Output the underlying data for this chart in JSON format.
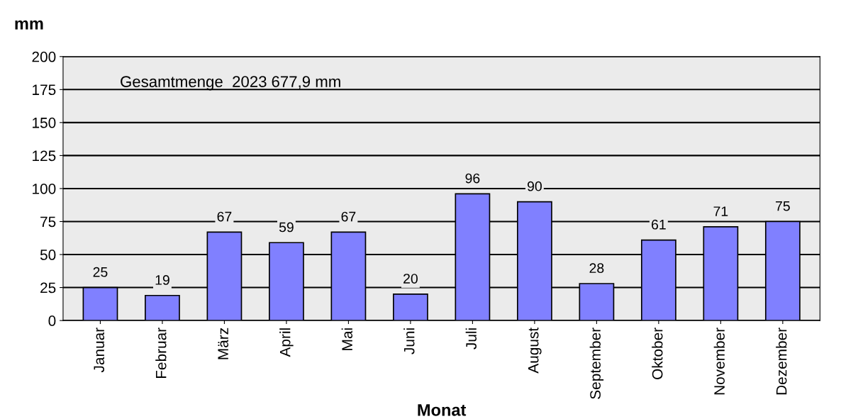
{
  "chart_data": {
    "type": "bar",
    "ylabel": "mm",
    "xlabel": "Monat",
    "categories": [
      "Januar",
      "Februar",
      "März",
      "April",
      "Mai",
      "Juni",
      "Juli",
      "August",
      "September",
      "Oktober",
      "November",
      "Dezember"
    ],
    "values": [
      25,
      19,
      67,
      59,
      67,
      20,
      96,
      90,
      28,
      61,
      71,
      75
    ],
    "color": "#8080ff",
    "ylim": [
      0,
      200
    ],
    "yticks": [
      0,
      25,
      50,
      75,
      100,
      125,
      150,
      175,
      200
    ],
    "grid": "y",
    "data_labels": true,
    "annotations": [
      "Gesamtmenge  2023",
      "677,9 mm"
    ]
  }
}
